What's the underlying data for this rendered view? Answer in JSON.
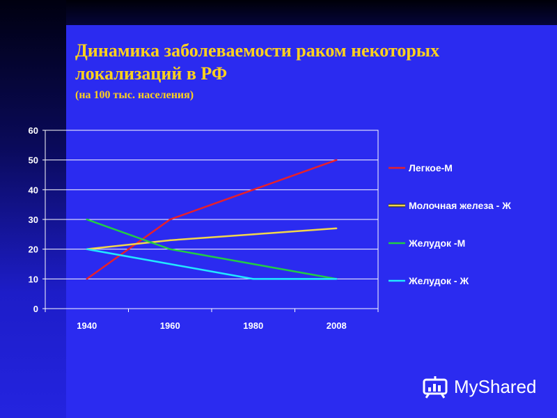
{
  "slide": {
    "title_line1": "Динамика заболеваемости раком некоторых",
    "title_line2": "локализаций в РФ",
    "subtitle": "(на 100 тыс. населения)",
    "watermark": "MyShared",
    "background_color": "#2b2bf0",
    "title_color": "#ffd21e"
  },
  "chart_data": {
    "type": "line",
    "categories": [
      "1940",
      "1960",
      "1980",
      "2008"
    ],
    "ylim": [
      0,
      60
    ],
    "yticks": [
      0,
      10,
      20,
      30,
      40,
      50,
      60
    ],
    "grid": true,
    "legend_position": "right",
    "series": [
      {
        "name": "Легкое-М",
        "color": "#e8202a",
        "values": [
          10,
          30,
          40,
          50
        ]
      },
      {
        "name": "Молочная железа - Ж",
        "color": "#f2d64b",
        "values": [
          20,
          23,
          25,
          27
        ]
      },
      {
        "name": "Желудок -М",
        "color": "#22cc44",
        "values": [
          30,
          20,
          15,
          10
        ]
      },
      {
        "name": "Желудок - Ж",
        "color": "#22e8ff",
        "values": [
          20,
          15,
          10,
          10
        ]
      }
    ]
  }
}
